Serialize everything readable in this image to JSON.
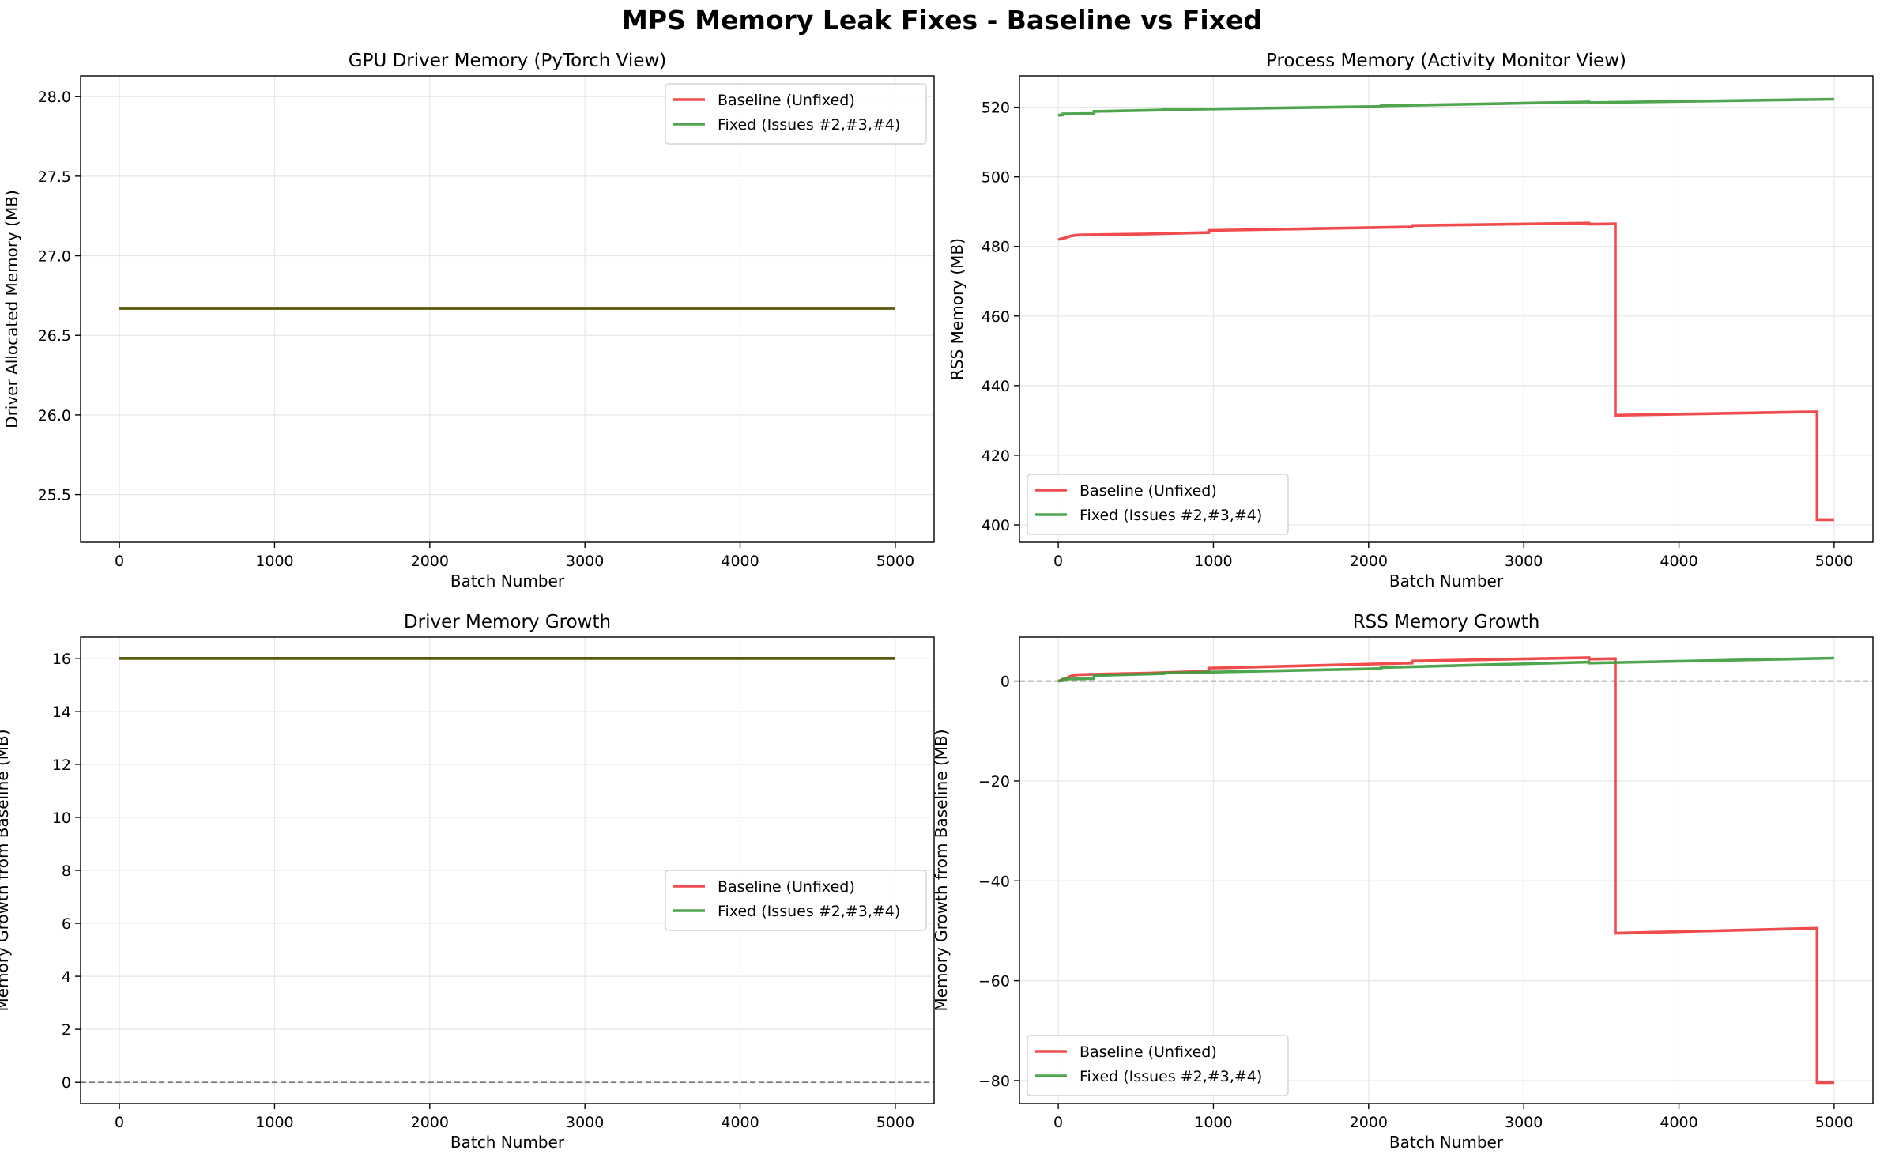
{
  "figure_title": "MPS Memory Leak Fixes - Baseline vs Fixed",
  "colors": {
    "baseline": "#f0393a",
    "fixed": "#3c9c3c",
    "overlap": "#5a5a0f",
    "grid": "#e6e6e6",
    "zero_line": "#808080"
  },
  "chart_data": [
    {
      "type": "line",
      "title": "GPU Driver Memory (PyTorch View)",
      "xlabel": "Batch Number",
      "ylabel": "Driver Allocated Memory (MB)",
      "xlim": [
        -250,
        5250
      ],
      "ylim": [
        25.2,
        28.13
      ],
      "xticks": [
        0,
        1000,
        2000,
        3000,
        4000,
        5000
      ],
      "yticks": [
        25.5,
        26.0,
        26.5,
        27.0,
        27.5,
        28.0
      ],
      "ytick_labels": [
        "25.5",
        "26.0",
        "26.5",
        "27.0",
        "27.5",
        "28.0"
      ],
      "grid": true,
      "legend_loc": "upper right",
      "zero_line": false,
      "series": [
        {
          "name": "Baseline (Unfixed)",
          "color_key": "baseline",
          "x": [
            0,
            5000
          ],
          "y": [
            26.67,
            26.67
          ]
        },
        {
          "name": "Fixed (Issues #2,#3,#4)",
          "color_key": "fixed",
          "x": [
            0,
            5000
          ],
          "y": [
            26.67,
            26.67
          ]
        }
      ]
    },
    {
      "type": "line",
      "title": "Process Memory (Activity Monitor View)",
      "xlabel": "Batch Number",
      "ylabel": "RSS Memory (MB)",
      "xlim": [
        -250,
        5250
      ],
      "ylim": [
        395,
        529
      ],
      "xticks": [
        0,
        1000,
        2000,
        3000,
        4000,
        5000
      ],
      "yticks": [
        400,
        420,
        440,
        460,
        480,
        500,
        520
      ],
      "ytick_labels": [
        "400",
        "420",
        "440",
        "460",
        "480",
        "500",
        "520"
      ],
      "grid": true,
      "legend_loc": "lower left",
      "zero_line": false,
      "series": [
        {
          "name": "Baseline (Unfixed)",
          "color_key": "baseline",
          "x": [
            0,
            50,
            50,
            80,
            80,
            130,
            130,
            580,
            970,
            970,
            2280,
            2280,
            3420,
            3420,
            3590,
            3590,
            4890,
            4890,
            5000
          ],
          "y": [
            482,
            482.5,
            482.5,
            483,
            483,
            483.3,
            483.3,
            483.6,
            484,
            484.6,
            485.6,
            486,
            486.7,
            486.4,
            486.5,
            431.5,
            432.5,
            401.5,
            401.5
          ]
        },
        {
          "name": "Fixed (Issues #2,#3,#4)",
          "color_key": "fixed",
          "x": [
            0,
            30,
            30,
            230,
            230,
            680,
            680,
            2080,
            2080,
            3420,
            3420,
            5000
          ],
          "y": [
            517.7,
            517.8,
            518.1,
            518.2,
            518.8,
            519.2,
            519.3,
            520.2,
            520.4,
            521.5,
            521.3,
            522.3
          ]
        }
      ]
    },
    {
      "type": "line",
      "title": "Driver Memory Growth",
      "xlabel": "Batch Number",
      "ylabel": "Memory Growth from Baseline (MB)",
      "xlim": [
        -250,
        5250
      ],
      "ylim": [
        -0.8,
        16.8
      ],
      "xticks": [
        0,
        1000,
        2000,
        3000,
        4000,
        5000
      ],
      "yticks": [
        0,
        2,
        4,
        6,
        8,
        10,
        12,
        14,
        16
      ],
      "ytick_labels": [
        "0",
        "2",
        "4",
        "6",
        "8",
        "10",
        "12",
        "14",
        "16"
      ],
      "grid": true,
      "legend_loc": "center right",
      "zero_line": true,
      "series": [
        {
          "name": "Baseline (Unfixed)",
          "color_key": "baseline",
          "x": [
            0,
            5000
          ],
          "y": [
            16,
            16
          ]
        },
        {
          "name": "Fixed (Issues #2,#3,#4)",
          "color_key": "fixed",
          "x": [
            0,
            5000
          ],
          "y": [
            16,
            16
          ]
        }
      ]
    },
    {
      "type": "line",
      "title": "RSS Memory Growth",
      "xlabel": "Batch Number",
      "ylabel": "Memory Growth from Baseline (MB)",
      "xlim": [
        -250,
        5250
      ],
      "ylim": [
        -84.6,
        8.8
      ],
      "xticks": [
        0,
        1000,
        2000,
        3000,
        4000,
        5000
      ],
      "yticks": [
        -80,
        -60,
        -40,
        -20,
        0
      ],
      "ytick_labels": [
        "−80",
        "−60",
        "−40",
        "−20",
        "0"
      ],
      "grid": true,
      "legend_loc": "lower left",
      "zero_line": true,
      "series": [
        {
          "name": "Baseline (Unfixed)",
          "color_key": "baseline",
          "x": [
            0,
            50,
            50,
            80,
            80,
            130,
            130,
            580,
            970,
            970,
            2280,
            2280,
            3420,
            3420,
            3590,
            3590,
            4890,
            4890,
            5000
          ],
          "y": [
            0,
            0.5,
            0.5,
            1,
            1,
            1.3,
            1.3,
            1.6,
            2,
            2.6,
            3.6,
            4,
            4.7,
            4.4,
            4.5,
            -50.5,
            -49.5,
            -80.4,
            -80.4
          ]
        },
        {
          "name": "Fixed (Issues #2,#3,#4)",
          "color_key": "fixed",
          "x": [
            0,
            30,
            30,
            230,
            230,
            680,
            680,
            2080,
            2080,
            3420,
            3420,
            5000
          ],
          "y": [
            0,
            0.1,
            0.4,
            0.5,
            1.1,
            1.5,
            1.6,
            2.5,
            2.7,
            3.8,
            3.6,
            4.6
          ]
        }
      ]
    }
  ]
}
